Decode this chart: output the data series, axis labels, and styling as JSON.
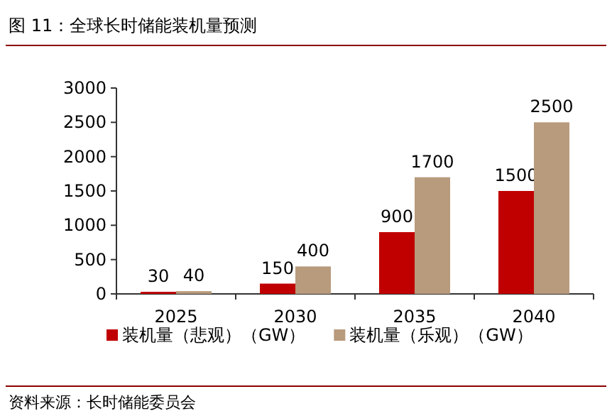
{
  "chart_data": {
    "type": "bar",
    "title": "图 11：全球长时储能装机量预测",
    "categories": [
      "2025",
      "2030",
      "2035",
      "2040"
    ],
    "series": [
      {
        "name": "装机量（悲观）（GW）",
        "color": "#c00000",
        "values": [
          30,
          150,
          900,
          1500
        ]
      },
      {
        "name": "装机量（乐观）（GW）",
        "color": "#b89a7c",
        "values": [
          40,
          400,
          1700,
          2500
        ]
      }
    ],
    "ylim": [
      0,
      3000
    ],
    "yticks": [
      0,
      500,
      1000,
      1500,
      2000,
      2500,
      3000
    ],
    "data_labels": true,
    "legend": "bottom",
    "grid": false,
    "annotations": [
      "资料来源：长时储能委员会"
    ]
  }
}
